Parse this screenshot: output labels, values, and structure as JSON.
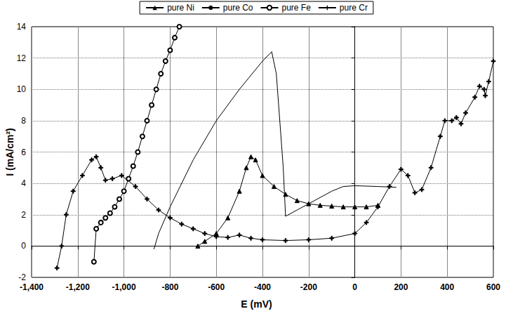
{
  "chart_data": {
    "type": "line",
    "xlabel": "E (mV)",
    "ylabel": "I (mA/cm²)",
    "xlim": [
      -1400,
      600
    ],
    "xticks": [
      -1400,
      -1200,
      -1000,
      -800,
      -600,
      -400,
      -200,
      0,
      200,
      400,
      600
    ],
    "ylim": [
      -2,
      14
    ],
    "yticks": [
      -2,
      0,
      2,
      4,
      6,
      8,
      10,
      12,
      14
    ],
    "grid": true,
    "legend": "top",
    "series": [
      {
        "name": "pure Ni",
        "color": "#000000",
        "marker": "triangle",
        "line_style": "solid",
        "x": [
          -680,
          -650,
          -600,
          -550,
          -500,
          -470,
          -450,
          -430,
          -400,
          -350,
          -300,
          -250,
          -200,
          -150,
          -100,
          -50,
          0,
          50,
          100
        ],
        "values": [
          0,
          0.3,
          0.8,
          1.8,
          3.5,
          5,
          5.7,
          5.5,
          4.5,
          3.8,
          3.3,
          2.9,
          2.7,
          2.6,
          2.55,
          2.5,
          2.5,
          2.5,
          2.6
        ]
      },
      {
        "name": "pure Co",
        "color": "#000000",
        "marker": "none",
        "line_style": "solid",
        "x": [
          -870,
          -850,
          -800,
          -700,
          -600,
          -500,
          -400,
          -360,
          -340,
          -310,
          -300,
          -250,
          -200,
          -100,
          -50,
          0,
          100,
          180
        ],
        "values": [
          -0.2,
          0.8,
          2.5,
          5.5,
          8,
          10,
          11.8,
          12.4,
          11,
          5,
          1.9,
          2.3,
          2.7,
          3.5,
          3.8,
          3.85,
          3.8,
          3.75
        ]
      },
      {
        "name": "pure Fe",
        "color": "#000000",
        "marker": "circle",
        "line_style": "solid",
        "x": [
          -1130,
          -1120,
          -1100,
          -1080,
          -1060,
          -1040,
          -1020,
          -1000,
          -980,
          -960,
          -940,
          -920,
          -900,
          -880,
          -860,
          -840,
          -820,
          -800,
          -780,
          -760
        ],
        "values": [
          -1,
          1.1,
          1.5,
          1.8,
          2.1,
          2.5,
          3,
          3.5,
          4.3,
          5.1,
          6,
          7,
          8,
          9,
          10,
          11,
          11.8,
          12.5,
          13.3,
          14
        ]
      },
      {
        "name": "pure Cr",
        "color": "#000000",
        "marker": "plus",
        "line_style": "solid",
        "x": [
          -1290,
          -1270,
          -1250,
          -1220,
          -1180,
          -1140,
          -1120,
          -1100,
          -1080,
          -1050,
          -1010,
          -950,
          -900,
          -850,
          -800,
          -750,
          -700,
          -650,
          -600,
          -550,
          -500,
          -450,
          -400,
          -300,
          -200,
          -100,
          0,
          50,
          100,
          150,
          200,
          230,
          260,
          290,
          330,
          370,
          390,
          420,
          440,
          460,
          480,
          520,
          540,
          560,
          565,
          580,
          600
        ],
        "values": [
          -1.4,
          0,
          2,
          3.5,
          4.5,
          5.5,
          5.7,
          5,
          4.2,
          4.3,
          4.5,
          3.8,
          3,
          2.3,
          1.8,
          1.4,
          1.1,
          0.8,
          0.6,
          0.55,
          0.7,
          0.5,
          0.4,
          0.35,
          0.4,
          0.5,
          0.8,
          1.5,
          2.5,
          3.8,
          4.9,
          4.5,
          3.4,
          3.6,
          5,
          7,
          8,
          8,
          8.2,
          7.8,
          8.5,
          9.5,
          10.2,
          10,
          9.6,
          10.5,
          11.8
        ]
      }
    ]
  }
}
